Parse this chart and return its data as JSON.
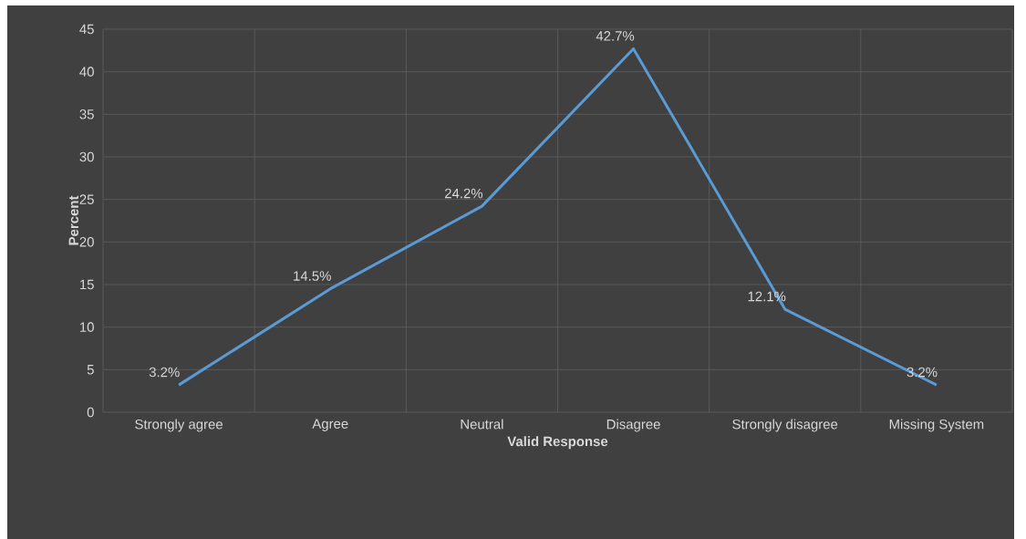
{
  "chart_data": {
    "type": "line",
    "xlabel": "Valid Response",
    "ylabel": "Percent",
    "categories": [
      "Strongly agree",
      "Agree",
      "Neutral",
      "Disagree",
      "Strongly disagree",
      "Missing System"
    ],
    "series": [
      {
        "color": "#5b9bd5",
        "values": [
          3.2,
          14.5,
          24.2,
          42.7,
          12.1,
          3.2
        ],
        "value_labels": [
          "3.2%",
          "14.5%",
          "24.2%",
          "42.7%",
          "12.1%",
          "3.2%"
        ]
      }
    ],
    "ylim": [
      0,
      45
    ],
    "yticks": [
      0,
      5,
      10,
      15,
      20,
      25,
      30,
      35,
      40,
      45
    ],
    "grid": true,
    "marker": "none",
    "line_style": "solid"
  }
}
